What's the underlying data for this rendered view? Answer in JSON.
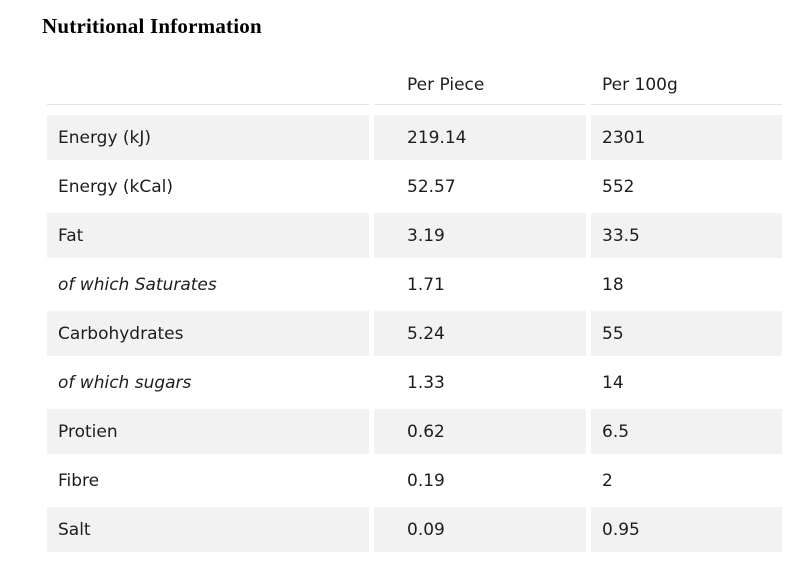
{
  "page": {
    "title": "Nutritional Information"
  },
  "table": {
    "columns": [
      {
        "label": ""
      },
      {
        "label": "Per Piece"
      },
      {
        "label": "Per 100g"
      }
    ],
    "rows": [
      {
        "label": "Energy (kJ)",
        "per_piece": "219.14",
        "per_100g": "2301",
        "italic": false
      },
      {
        "label": "Energy (kCal)",
        "per_piece": "52.57",
        "per_100g": "552",
        "italic": false
      },
      {
        "label": "Fat",
        "per_piece": "3.19",
        "per_100g": "33.5",
        "italic": false
      },
      {
        "label": "of which Saturates",
        "per_piece": "1.71",
        "per_100g": "18",
        "italic": true
      },
      {
        "label": "Carbohydrates",
        "per_piece": "5.24",
        "per_100g": "55",
        "italic": false
      },
      {
        "label": "of which sugars",
        "per_piece": "1.33",
        "per_100g": "14",
        "italic": true
      },
      {
        "label": "Protien",
        "per_piece": "0.62",
        "per_100g": "6.5",
        "italic": false
      },
      {
        "label": "Fibre",
        "per_piece": "0.19",
        "per_100g": "2",
        "italic": false
      },
      {
        "label": "Salt",
        "per_piece": "0.09",
        "per_100g": "0.95",
        "italic": false
      }
    ],
    "colors": {
      "row_alt_bg": "#f2f2f2",
      "text": "#1d1d1b",
      "header_underline": "#e3e3e1"
    }
  }
}
